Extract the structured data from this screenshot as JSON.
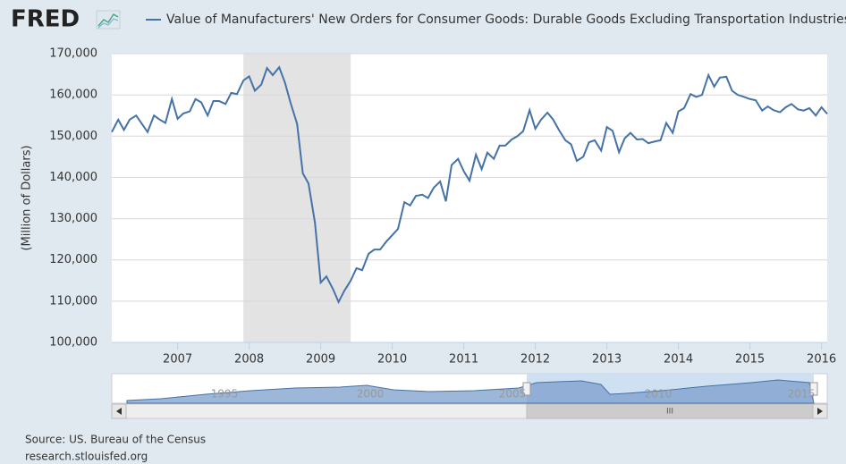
{
  "logo": "FRED",
  "source": "Source: US. Bureau of the Census",
  "website": "research.stlouisfed.org",
  "navigator": {
    "labels": [
      "1995",
      "2000",
      "2005",
      "2010",
      "2015"
    ],
    "scrollbar_grip": "III"
  },
  "chart_data": {
    "type": "line",
    "ylabel": "(Million of Dollars)",
    "xlim": [
      2006.08,
      2016.08
    ],
    "xticks": [
      2007,
      2008,
      2009,
      2010,
      2011,
      2012,
      2013,
      2014,
      2015,
      2016
    ],
    "ylim": [
      100000,
      170000
    ],
    "yticks": [
      {
        "value": 100000,
        "label": "100,000"
      },
      {
        "value": 110000,
        "label": "110,000"
      },
      {
        "value": 120000,
        "label": "120,000"
      },
      {
        "value": 130000,
        "label": "130,000"
      },
      {
        "value": 140000,
        "label": "140,000"
      },
      {
        "value": 150000,
        "label": "150,000"
      },
      {
        "value": 160000,
        "label": "160,000"
      },
      {
        "value": 170000,
        "label": "170,000"
      }
    ],
    "grid": true,
    "shaded_ranges": [
      [
        2007.92,
        2009.42
      ]
    ],
    "shade_color": "#e3e3e3",
    "x": [
      2006.08,
      2006.17,
      2006.25,
      2006.33,
      2006.42,
      2006.5,
      2006.58,
      2006.67,
      2006.75,
      2006.83,
      2006.92,
      2007,
      2007.08,
      2007.17,
      2007.25,
      2007.33,
      2007.42,
      2007.5,
      2007.58,
      2007.67,
      2007.75,
      2007.83,
      2007.92,
      2008,
      2008.08,
      2008.17,
      2008.25,
      2008.33,
      2008.42,
      2008.5,
      2008.58,
      2008.67,
      2008.75,
      2008.83,
      2008.92,
      2009,
      2009.08,
      2009.17,
      2009.25,
      2009.33,
      2009.42,
      2009.5,
      2009.58,
      2009.67,
      2009.75,
      2009.83,
      2009.92,
      2010,
      2010.08,
      2010.17,
      2010.25,
      2010.33,
      2010.42,
      2010.5,
      2010.58,
      2010.67,
      2010.75,
      2010.83,
      2010.92,
      2011,
      2011.08,
      2011.17,
      2011.25,
      2011.33,
      2011.42,
      2011.5,
      2011.58,
      2011.67,
      2011.75,
      2011.83,
      2011.92,
      2012,
      2012.08,
      2012.17,
      2012.25,
      2012.33,
      2012.42,
      2012.5,
      2012.58,
      2012.67,
      2012.75,
      2012.83,
      2012.92,
      2013,
      2013.08,
      2013.17,
      2013.25,
      2013.33,
      2013.42,
      2013.5,
      2013.58,
      2013.67,
      2013.75,
      2013.83,
      2013.92,
      2014,
      2014.08,
      2014.17,
      2014.25,
      2014.33,
      2014.42,
      2014.5,
      2014.58,
      2014.67,
      2014.75,
      2014.83,
      2014.92,
      2015,
      2015.08,
      2015.17,
      2015.25,
      2015.33,
      2015.42,
      2015.5,
      2015.58,
      2015.67,
      2015.75,
      2015.83,
      2015.92,
      2016,
      2016.08
    ],
    "series": [
      {
        "name": "Value of Manufacturers' New Orders for Consumer Goods: Durable Goods Excluding Transportation Industries",
        "color": "#4572a7",
        "values": [
          151000,
          154000,
          151500,
          154000,
          155000,
          153000,
          151000,
          155000,
          154000,
          153200,
          159000,
          154200,
          155500,
          156000,
          159000,
          158200,
          155000,
          158500,
          158500,
          157800,
          160500,
          160200,
          163500,
          164500,
          161000,
          162500,
          166500,
          164800,
          166700,
          163000,
          158000,
          153000,
          141000,
          138500,
          129000,
          114500,
          116000,
          113000,
          109800,
          112500,
          115000,
          118000,
          117500,
          121500,
          122500,
          122500,
          124500,
          126000,
          127500,
          134000,
          133200,
          135500,
          135800,
          135000,
          137500,
          139000,
          134200,
          143000,
          144500,
          141500,
          139200,
          145500,
          142000,
          146000,
          144500,
          147700,
          147700,
          149200,
          150000,
          151200,
          156300,
          151800,
          154000,
          155700,
          154000,
          151500,
          149000,
          148000,
          144000,
          145000,
          148500,
          149000,
          146500,
          152200,
          151300,
          146100,
          149500,
          150800,
          149200,
          149300,
          148300,
          148700,
          149000,
          153200,
          150800,
          156000,
          156800,
          160200,
          159500,
          160000,
          164800,
          162000,
          164200,
          164400,
          161000,
          160000,
          159500,
          159000,
          158700,
          156200,
          157200,
          156300,
          155800,
          157000,
          157800,
          156500,
          156200,
          156800,
          155000,
          157000,
          155400
        ]
      }
    ]
  }
}
